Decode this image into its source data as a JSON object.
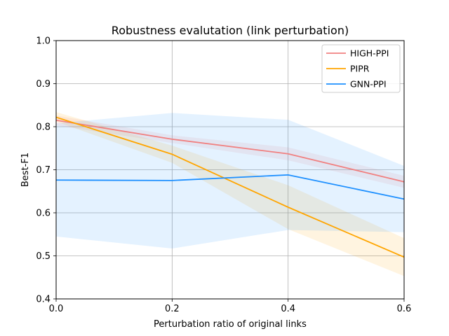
{
  "chart_data": {
    "type": "line",
    "title": "Robustness evalutation (link perturbation)",
    "xlabel": "Perturbation ratio of original links",
    "ylabel": "Best-F1",
    "xlim": [
      0.0,
      0.6
    ],
    "ylim": [
      0.4,
      1.0
    ],
    "x": [
      0.0,
      0.2,
      0.4,
      0.6
    ],
    "x_ticks": [
      "0.0",
      "0.2",
      "0.4",
      "0.6"
    ],
    "y_ticks": [
      "0.4",
      "0.5",
      "0.6",
      "0.7",
      "0.8",
      "0.9",
      "1.0"
    ],
    "grid": true,
    "legend_position": "top-right",
    "series": [
      {
        "name": "HIGH-PPI",
        "color": "#f08080",
        "values": [
          0.815,
          0.771,
          0.737,
          0.672
        ],
        "lower": [
          0.803,
          0.762,
          0.722,
          0.658
        ],
        "upper": [
          0.826,
          0.78,
          0.752,
          0.686
        ]
      },
      {
        "name": "PIPR",
        "color": "#ffa500",
        "values": [
          0.822,
          0.736,
          0.613,
          0.497
        ],
        "lower": [
          0.812,
          0.716,
          0.562,
          0.453
        ],
        "upper": [
          0.834,
          0.756,
          0.664,
          0.541
        ]
      },
      {
        "name": "GNN-PPI",
        "color": "#1e90ff",
        "values": [
          0.676,
          0.675,
          0.688,
          0.632
        ],
        "lower": [
          0.545,
          0.517,
          0.56,
          0.555
        ],
        "upper": [
          0.808,
          0.832,
          0.816,
          0.709
        ]
      }
    ]
  }
}
